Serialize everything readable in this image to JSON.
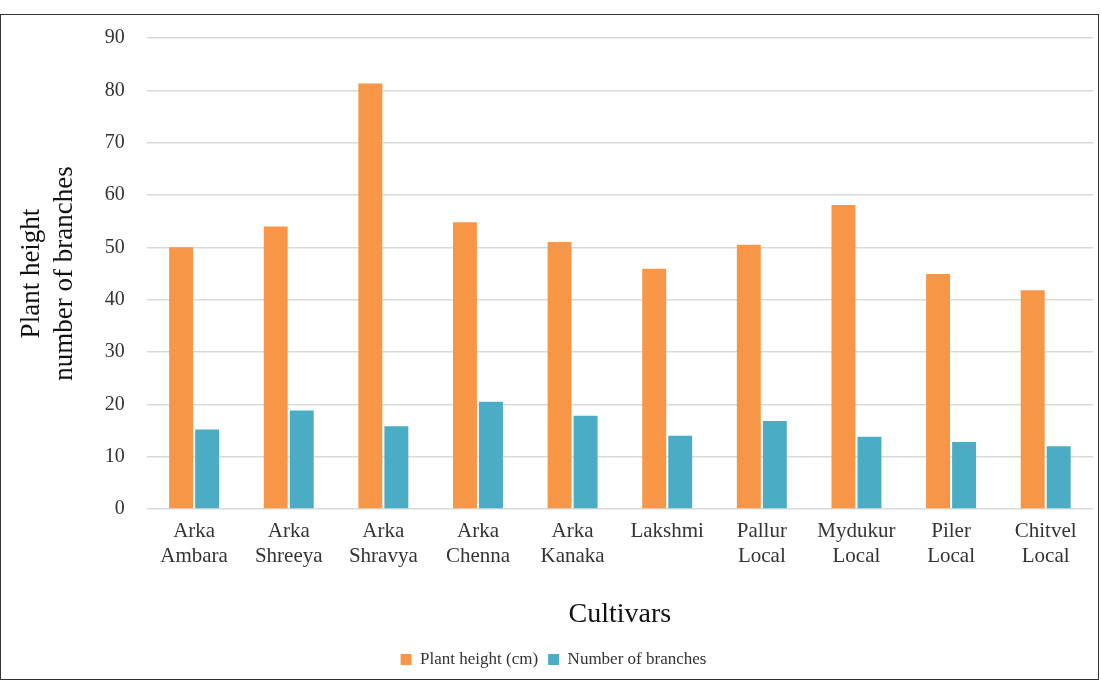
{
  "chart_data": {
    "type": "bar",
    "xlabel": "Cultivars",
    "ylabel": "Plant height\nnumber of branches",
    "categories": [
      "Arka Ambara",
      "Arka Shreeya",
      "Arka Shravya",
      "Arka Chenna",
      "Arka Kanaka",
      "Lakshmi",
      "Pallur Local",
      "Mydukur Local",
      "Piler Local",
      "Chitvel Local"
    ],
    "series": [
      {
        "name": "Plant height (cm)",
        "color": "#f79646",
        "values": [
          50,
          54,
          81.3,
          54.8,
          51,
          45.9,
          50.5,
          58.1,
          44.9,
          41.8
        ]
      },
      {
        "name": "Number of branches",
        "color": "#4bacc6",
        "values": [
          15.2,
          18.8,
          15.8,
          20.5,
          17.8,
          14,
          16.8,
          13.8,
          12.8,
          12
        ]
      }
    ],
    "ylim": [
      0,
      90
    ],
    "yticks": [
      0,
      10,
      20,
      30,
      40,
      50,
      60,
      70,
      80,
      90
    ],
    "grid": "y",
    "legend": "bottom"
  }
}
